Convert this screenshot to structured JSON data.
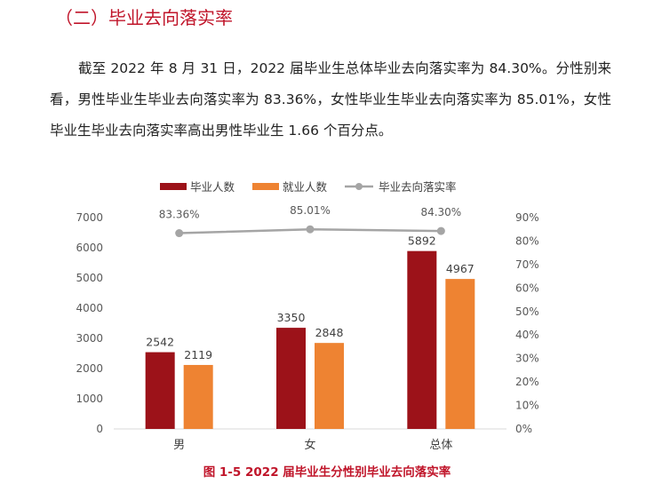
{
  "section_heading": "（二）毕业去向落实率",
  "paragraph": "截至 2022 年 8 月 31 日，2022 届毕业生总体毕业去向落实率为 84.30%。分性别来看，男性毕业生毕业去向落实率为 83.36%，女性毕业生毕业去向落实率为 85.01%，女性毕业生毕业去向落实率高出男性毕业生 1.66 个百分点。",
  "caption": "图 1-5  2022 届毕业生分性别毕业去向落实率",
  "chart_data": {
    "type": "bar",
    "categories": [
      "男",
      "女",
      "总体"
    ],
    "series": [
      {
        "name": "毕业人数",
        "values": [
          2542,
          3350,
          5892
        ],
        "color": "#9c1219",
        "axis": "left"
      },
      {
        "name": "就业人数",
        "values": [
          2119,
          2848,
          4967
        ],
        "color": "#ee8332",
        "axis": "left"
      },
      {
        "name": "毕业去向落实率",
        "type": "line",
        "values": [
          83.36,
          85.01,
          84.3
        ],
        "labels": [
          "83.36%",
          "85.01%",
          "84.30%"
        ],
        "color": "#a5a5a5",
        "axis": "right"
      }
    ],
    "ylim": [
      0,
      7000
    ],
    "yticks": [
      0,
      1000,
      2000,
      3000,
      4000,
      5000,
      6000,
      7000
    ],
    "y2lim": [
      0,
      90
    ],
    "y2ticks": [
      "0%",
      "10%",
      "20%",
      "30%",
      "40%",
      "50%",
      "60%",
      "70%",
      "80%",
      "90%"
    ],
    "legend_position": "top",
    "grid": false
  }
}
